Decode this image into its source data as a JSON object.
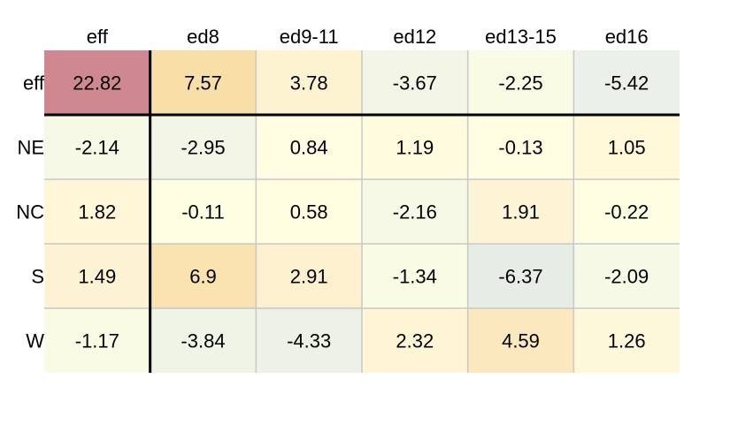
{
  "chart_data": {
    "type": "heatmap",
    "title": "",
    "xlabel": "",
    "ylabel": "",
    "columns": [
      "eff",
      "ed8",
      "ed9-11",
      "ed12",
      "ed13-15",
      "ed16"
    ],
    "rows": [
      "eff",
      "NE",
      "NC",
      "S",
      "W"
    ],
    "values": [
      [
        "22.82",
        "7.57",
        "3.78",
        "-3.67",
        "-2.25",
        "-5.42"
      ],
      [
        "-2.14",
        "-2.95",
        "0.84",
        "1.19",
        "-0.13",
        "1.05"
      ],
      [
        "1.82",
        "-0.11",
        "0.58",
        "-2.16",
        "1.91",
        "-0.22"
      ],
      [
        "1.49",
        "6.9",
        "2.91",
        "-1.34",
        "-6.37",
        "-2.09"
      ],
      [
        "-1.17",
        "-3.84",
        "-4.33",
        "2.32",
        "4.59",
        "1.26"
      ]
    ],
    "cell_colors": [
      [
        "#CF8790",
        "#F8DFA7",
        "#FDF3D1",
        "#F3F5E7",
        "#FAFBE4",
        "#EBF0E8"
      ],
      [
        "#F6F9E6",
        "#F3F6E6",
        "#FFFCE1",
        "#FFFBDE",
        "#FFFEE2",
        "#FFF9D9"
      ],
      [
        "#FEF6D7",
        "#FEFEE2",
        "#FFFDE0",
        "#F6F9E6",
        "#FDF4D5",
        "#FDFDE2"
      ],
      [
        "#FDF2D3",
        "#FAE3B0",
        "#FCF0CF",
        "#F9FBE4",
        "#E7EDE6",
        "#F6F9E5"
      ],
      [
        "#F9FBE4",
        "#F0F4E6",
        "#EDF1E7",
        "#FEF5D5",
        "#FBE8BE",
        "#FEF8DA"
      ]
    ],
    "grid_color": "#c8c8c8",
    "separator_color": "#000000"
  }
}
